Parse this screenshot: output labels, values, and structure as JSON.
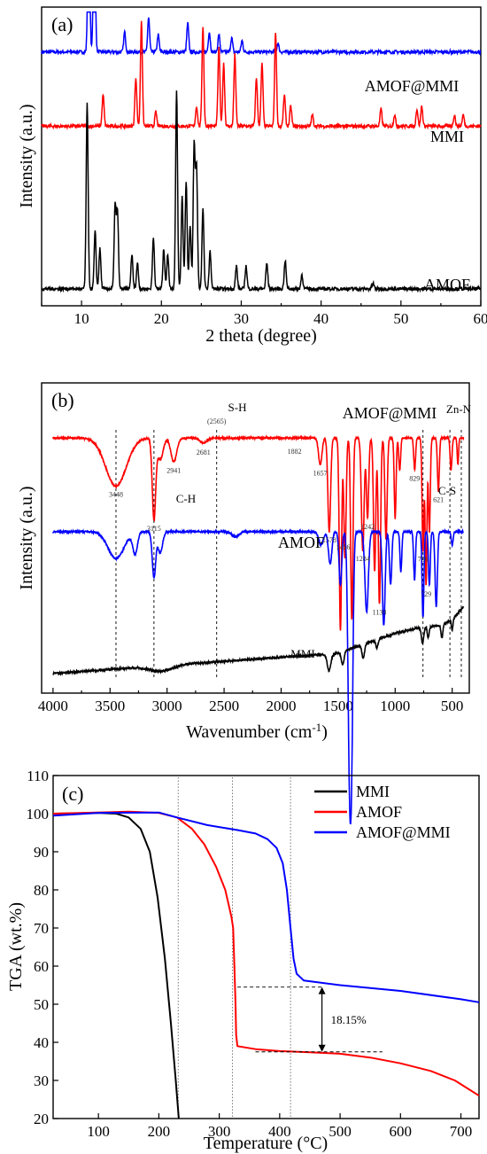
{
  "chart_data": [
    {
      "panel": "(a)",
      "type": "line",
      "xlabel": "2 theta (degree)",
      "ylabel": "Intensity (a.u.)",
      "xlim": [
        5,
        60
      ],
      "xticks": [
        10,
        20,
        30,
        40,
        50,
        60
      ],
      "series": [
        {
          "name": "AMOF@MMI",
          "color": "#0000ff",
          "baseline": 0.88,
          "peaks": [
            [
              10.9,
              0.68
            ],
            [
              11.6,
              0.65
            ],
            [
              15.4,
              0.07
            ],
            [
              18.4,
              0.12
            ],
            [
              19.6,
              0.06
            ],
            [
              23.3,
              0.1
            ],
            [
              26.0,
              0.07
            ],
            [
              27.2,
              0.06
            ],
            [
              28.8,
              0.05
            ],
            [
              30.1,
              0.04
            ],
            [
              34.6,
              0.03
            ]
          ]
        },
        {
          "name": "MMI",
          "color": "#ff0000",
          "baseline": 0.62,
          "peaks": [
            [
              12.7,
              0.11
            ],
            [
              16.8,
              0.17
            ],
            [
              17.5,
              0.37
            ],
            [
              19.3,
              0.05
            ],
            [
              24.4,
              0.07
            ],
            [
              25.2,
              0.35
            ],
            [
              27.2,
              0.28
            ],
            [
              27.8,
              0.22
            ],
            [
              29.2,
              0.25
            ],
            [
              31.9,
              0.17
            ],
            [
              32.6,
              0.22
            ],
            [
              34.3,
              0.33
            ],
            [
              35.4,
              0.11
            ],
            [
              36.2,
              0.07
            ],
            [
              38.9,
              0.04
            ],
            [
              47.5,
              0.06
            ],
            [
              49.2,
              0.04
            ],
            [
              52.0,
              0.06
            ],
            [
              52.6,
              0.07
            ],
            [
              56.7,
              0.04
            ],
            [
              57.8,
              0.04
            ]
          ]
        },
        {
          "name": "AMOF",
          "color": "#000000",
          "baseline": 0.05,
          "peaks": [
            [
              10.7,
              0.65
            ],
            [
              11.7,
              0.2
            ],
            [
              12.3,
              0.14
            ],
            [
              14.2,
              0.29
            ],
            [
              14.5,
              0.27
            ],
            [
              16.3,
              0.12
            ],
            [
              17.0,
              0.09
            ],
            [
              19.0,
              0.18
            ],
            [
              20.3,
              0.14
            ],
            [
              20.8,
              0.12
            ],
            [
              21.9,
              0.7
            ],
            [
              22.6,
              0.32
            ],
            [
              23.1,
              0.38
            ],
            [
              23.6,
              0.22
            ],
            [
              24.1,
              0.5
            ],
            [
              24.4,
              0.42
            ],
            [
              25.2,
              0.28
            ],
            [
              26.1,
              0.13
            ],
            [
              29.4,
              0.08
            ],
            [
              30.6,
              0.08
            ],
            [
              33.2,
              0.09
            ],
            [
              35.5,
              0.1
            ],
            [
              37.6,
              0.05
            ],
            [
              46.5,
              0.02
            ]
          ]
        }
      ]
    },
    {
      "panel": "(b)",
      "type": "line",
      "xlabel": "Wavenumber (cm",
      "xlabel_sup": "-1",
      "xlabel_close": ")",
      "ylabel": "Intensity (a.u.)",
      "xlim": [
        4100,
        350
      ],
      "xticks": [
        4000,
        3500,
        3000,
        2500,
        2000,
        1500,
        1000,
        500
      ],
      "series": [
        {
          "name": "AMOF@MMI",
          "color": "#ff0000",
          "baseline": 0.92,
          "dips": [
            [
              3448,
              0.18,
              90
            ],
            [
              3115,
              0.3,
              15
            ],
            [
              3060,
              0.08,
              25
            ],
            [
              2941,
              0.09,
              25
            ],
            [
              2681,
              0.02,
              30
            ],
            [
              1657,
              0.1,
              15
            ],
            [
              1578,
              0.35,
              12
            ],
            [
              1480,
              0.72,
              10
            ],
            [
              1440,
              0.45,
              10
            ],
            [
              1380,
              0.68,
              10
            ],
            [
              1284,
              0.42,
              12
            ],
            [
              1242,
              0.3,
              10
            ],
            [
              1180,
              0.5,
              10
            ],
            [
              1138,
              0.62,
              10
            ],
            [
              1080,
              0.38,
              10
            ],
            [
              1000,
              0.3,
              8
            ],
            [
              960,
              0.12,
              8
            ],
            [
              829,
              0.12,
              8
            ],
            [
              756,
              0.42,
              8
            ],
            [
              729,
              0.55,
              8
            ],
            [
              700,
              0.35,
              8
            ],
            [
              621,
              0.2,
              8
            ],
            [
              510,
              0.12,
              8
            ],
            [
              450,
              0.1,
              6
            ]
          ]
        },
        {
          "name": "AMOF",
          "color": "#0000ff",
          "baseline": 0.57,
          "dips": [
            [
              3448,
              0.1,
              70
            ],
            [
              3280,
              0.08,
              20
            ],
            [
              3115,
              0.17,
              15
            ],
            [
              3060,
              0.08,
              20
            ],
            [
              2400,
              0.02,
              30
            ],
            [
              1650,
              0.05,
              20
            ],
            [
              1570,
              0.12,
              15
            ],
            [
              1480,
              0.2,
              12
            ],
            [
              1400,
              0.86,
              14
            ],
            [
              1380,
              0.6,
              12
            ],
            [
              1250,
              0.3,
              15
            ],
            [
              1100,
              0.35,
              12
            ],
            [
              1040,
              0.2,
              10
            ],
            [
              950,
              0.15,
              8
            ],
            [
              830,
              0.18,
              8
            ],
            [
              756,
              0.32,
              8
            ],
            [
              700,
              0.2,
              8
            ],
            [
              640,
              0.28,
              10
            ],
            [
              500,
              0.05,
              8
            ]
          ]
        },
        {
          "name": "MMI",
          "color": "#000000",
          "baseline": 0.04,
          "rises": [
            [
              1700,
              0.07
            ],
            [
              1550,
              0.07
            ],
            [
              1000,
              0.15
            ],
            [
              800,
              0.17
            ],
            [
              600,
              0.18
            ],
            [
              500,
              0.2
            ],
            [
              400,
              0.25
            ]
          ],
          "dips": [
            [
              3050,
              0.02,
              100
            ],
            [
              1580,
              0.06,
              15
            ],
            [
              1460,
              0.05,
              12
            ],
            [
              1280,
              0.05,
              12
            ],
            [
              1160,
              0.03,
              10
            ],
            [
              760,
              0.06,
              10
            ],
            [
              710,
              0.04,
              8
            ],
            [
              590,
              0.05,
              8
            ],
            [
              500,
              0.04,
              6
            ]
          ]
        }
      ],
      "peak_labels": [
        {
          "text": "3448",
          "x": 3448,
          "series": "AMOF@MMI"
        },
        {
          "text": "3115",
          "x": 3115,
          "series": "AMOF@MMI"
        },
        {
          "text": "2941",
          "x": 2941,
          "series": "AMOF@MMI"
        },
        {
          "text": "2681",
          "x": 2681,
          "series": "AMOF@MMI"
        },
        {
          "text": "(2565)",
          "x": 2565,
          "series": "AMOF@MMI"
        },
        {
          "text": "1882",
          "x": 1882,
          "series": "AMOF@MMI"
        },
        {
          "text": "1657",
          "x": 1657,
          "series": "AMOF@MMI"
        },
        {
          "text": "1578",
          "x": 1578,
          "series": "AMOF@MMI"
        },
        {
          "text": "1456",
          "x": 1456,
          "series": "AMOF"
        },
        {
          "text": "1284",
          "x": 1284,
          "series": "AMOF@MMI"
        },
        {
          "text": "1242",
          "x": 1242,
          "series": "AMOF@MMI"
        },
        {
          "text": "1138",
          "x": 1138,
          "series": "AMOF@MMI"
        },
        {
          "text": "829",
          "x": 829,
          "series": "AMOF@MMI"
        },
        {
          "text": "756",
          "x": 756,
          "series": "AMOF@MMI"
        },
        {
          "text": "729",
          "x": 729,
          "series": "AMOF@MMI"
        },
        {
          "text": "621",
          "x": 621,
          "series": "AMOF@MMI"
        }
      ],
      "band_labels": [
        {
          "text": "C-H",
          "x": 3115
        },
        {
          "text": "S-H",
          "x": 2565
        },
        {
          "text": "C-S",
          "x": 520
        },
        {
          "text": "Zn-N",
          "x": 420
        }
      ],
      "guide_lines_x": [
        3448,
        3115,
        2565,
        756,
        520,
        420
      ]
    },
    {
      "panel": "(c)",
      "type": "line",
      "xlabel": "Temperature (°C)",
      "ylabel": "TGA (wt.%)",
      "xlim": [
        25,
        730
      ],
      "ylim": [
        20,
        110
      ],
      "xticks": [
        100,
        200,
        300,
        400,
        500,
        600,
        700
      ],
      "yticks": [
        20,
        30,
        40,
        50,
        60,
        70,
        80,
        90,
        100,
        110
      ],
      "legend": "top-right",
      "series": [
        {
          "name": "MMI",
          "color": "#000000",
          "points": [
            [
              25,
              100
            ],
            [
              100,
              100.2
            ],
            [
              130,
              100
            ],
            [
              150,
              99
            ],
            [
              170,
              96
            ],
            [
              185,
              90
            ],
            [
              198,
              78
            ],
            [
              210,
              62
            ],
            [
              220,
              45
            ],
            [
              228,
              30
            ],
            [
              233,
              20
            ]
          ]
        },
        {
          "name": "AMOF",
          "color": "#ff0000",
          "points": [
            [
              25,
              100
            ],
            [
              150,
              100.5
            ],
            [
              200,
              100.2
            ],
            [
              230,
              99
            ],
            [
              255,
              96
            ],
            [
              275,
              92
            ],
            [
              295,
              86
            ],
            [
              310,
              80
            ],
            [
              320,
              73
            ],
            [
              323,
              70
            ],
            [
              325,
              60
            ],
            [
              327,
              50
            ],
            [
              328,
              42
            ],
            [
              330,
              39
            ],
            [
              360,
              38.2
            ],
            [
              400,
              37.7
            ],
            [
              450,
              37.4
            ],
            [
              500,
              37
            ],
            [
              550,
              36
            ],
            [
              600,
              34.5
            ],
            [
              650,
              32.5
            ],
            [
              690,
              30
            ],
            [
              710,
              28
            ],
            [
              730,
              26
            ]
          ]
        },
        {
          "name": "AMOF@MMI",
          "color": "#0000ff",
          "points": [
            [
              25,
              99.5
            ],
            [
              100,
              100.2
            ],
            [
              200,
              100.3
            ],
            [
              230,
              99
            ],
            [
              280,
              97
            ],
            [
              330,
              95.7
            ],
            [
              360,
              94.8
            ],
            [
              380,
              93.3
            ],
            [
              395,
              91
            ],
            [
              405,
              87
            ],
            [
              412,
              80
            ],
            [
              418,
              70
            ],
            [
              423,
              62
            ],
            [
              428,
              58
            ],
            [
              440,
              56.2
            ],
            [
              500,
              55
            ],
            [
              600,
              53.5
            ],
            [
              700,
              51.3
            ],
            [
              730,
              50.5
            ]
          ]
        }
      ],
      "annotation": {
        "text": "18.15%",
        "y_top": 54.5,
        "y_bottom": 37.5,
        "x": 470
      },
      "dotted_guides_x": [
        232,
        322,
        418
      ]
    }
  ]
}
